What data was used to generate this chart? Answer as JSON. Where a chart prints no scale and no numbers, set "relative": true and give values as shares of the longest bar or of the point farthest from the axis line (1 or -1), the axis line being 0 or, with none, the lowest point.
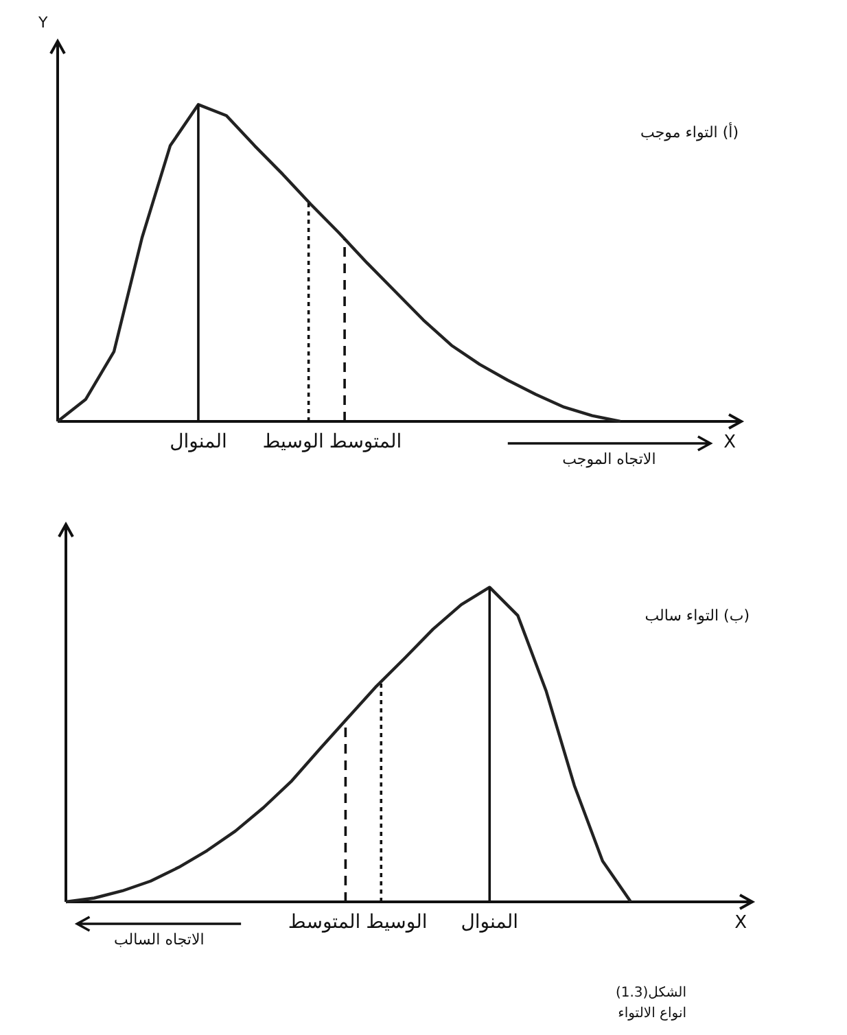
{
  "chart_data": [
    {
      "type": "line",
      "relative": true,
      "title": "(أ) التواء موجب",
      "xlabel": "X",
      "ylabel": "Y",
      "categories": [
        null,
        null,
        null,
        null,
        null,
        null,
        null,
        null,
        null,
        null,
        null,
        null,
        null,
        null,
        null,
        null,
        null,
        null,
        null,
        null,
        null
      ],
      "series": [
        {
          "color": "#222222",
          "values": [
            0,
            0.07,
            0.22,
            0.58,
            0.87,
            1.0,
            0.965,
            0.87,
            0.78,
            0.685,
            0.595,
            0.5,
            0.41,
            0.32,
            0.24,
            0.18,
            0.13,
            0.085,
            0.045,
            0.018,
            0
          ]
        }
      ],
      "ref_lines": [
        {
          "axis": "x",
          "label": "المنوال",
          "line_style": "solid"
        },
        {
          "axis": "x",
          "label": "الوسيط",
          "line_style": "dotted"
        },
        {
          "axis": "x",
          "label": "المتوسط",
          "line_style": "dashed"
        }
      ],
      "annotations": [
        "الاتجاه الموجب"
      ]
    },
    {
      "type": "line",
      "relative": true,
      "title": "(ب) التواء سالب",
      "xlabel": "X",
      "categories": [
        null,
        null,
        null,
        null,
        null,
        null,
        null,
        null,
        null,
        null,
        null,
        null,
        null,
        null,
        null,
        null,
        null,
        null,
        null,
        null,
        null
      ],
      "series": [
        {
          "color": "#222222",
          "values": [
            0,
            0.012,
            0.035,
            0.066,
            0.11,
            0.163,
            0.225,
            0.3,
            0.385,
            0.487,
            0.587,
            0.686,
            0.775,
            0.867,
            0.945,
            1.0,
            0.91,
            0.671,
            0.37,
            0.13,
            0
          ]
        }
      ],
      "ref_lines": [
        {
          "axis": "x",
          "label": "المنوال",
          "line_style": "solid"
        },
        {
          "axis": "x",
          "label": "الوسيط",
          "line_style": "dotted"
        },
        {
          "axis": "x",
          "label": "المتوسط",
          "line_style": "dashed"
        }
      ],
      "annotations": [
        "الاتجاه السالب",
        "الشكل(1.3)",
        "انواع الالتواء"
      ]
    }
  ]
}
